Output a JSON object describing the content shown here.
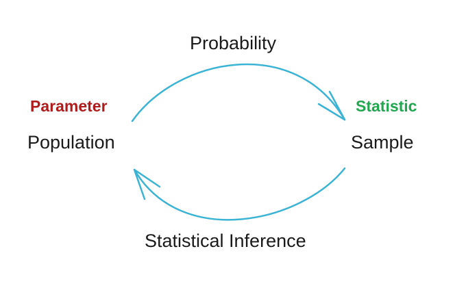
{
  "diagram": {
    "top_arrow_label": "Probability",
    "bottom_arrow_label": "Statistical Inference",
    "left_node": {
      "label": "Population",
      "tag": "Parameter"
    },
    "right_node": {
      "label": "Sample",
      "tag": "Statistic"
    }
  },
  "colors": {
    "arrow": "#3bb3d4",
    "parameter": "#b01c1c",
    "statistic": "#22a650",
    "text": "#1a1a1a"
  }
}
